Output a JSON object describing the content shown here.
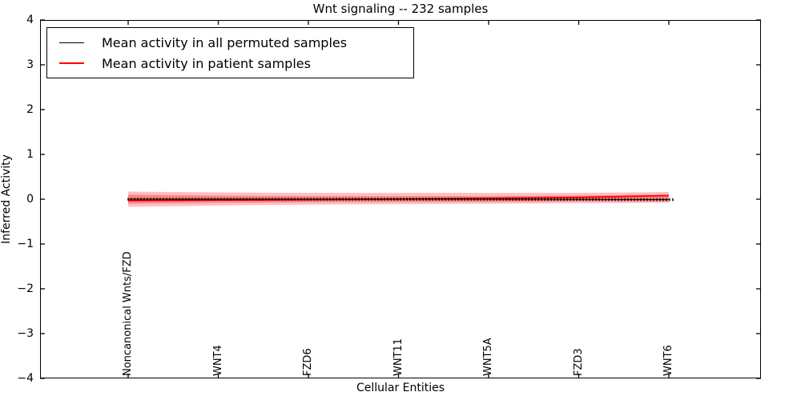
{
  "title": "Wnt signaling -- 232 samples",
  "chart_data": {
    "type": "line",
    "title": "Wnt signaling -- 232 samples",
    "xlabel": "Cellular Entities",
    "ylabel": "Inferred Activity",
    "ylim": [
      -4,
      4
    ],
    "ytick_values": [
      4,
      3,
      2,
      1,
      0,
      -1,
      -2,
      -3,
      -4
    ],
    "ytick_labels": [
      "4",
      "3",
      "2",
      "1",
      "0",
      "−1",
      "−2",
      "−3",
      "−4"
    ],
    "categories": [
      "Noncanonical Wnts/FZD",
      "WNT4",
      "FZD6",
      "WNT11",
      "WNT5A",
      "FZD3",
      "WNT6"
    ],
    "series": [
      {
        "name": "Mean activity in all permuted samples",
        "color": "#000000",
        "style": "line-with-tick-markers",
        "values": [
          0.0,
          0.0,
          0.0,
          0.0,
          0.0,
          -0.005,
          -0.01
        ]
      },
      {
        "name": "Mean activity in patient samples",
        "color": "#ff0000",
        "style": "solid",
        "values": [
          -0.03,
          -0.02,
          -0.01,
          0.005,
          0.02,
          0.04,
          0.08
        ]
      }
    ],
    "band": {
      "color": "#ff0000",
      "outer_opacity": 0.25,
      "inner_opacity": 0.3,
      "outer_upper": [
        0.17,
        0.15,
        0.14,
        0.14,
        0.14,
        0.14,
        0.16
      ],
      "outer_lower": [
        -0.17,
        -0.14,
        -0.12,
        -0.11,
        -0.1,
        -0.09,
        -0.08
      ],
      "inner_upper": [
        0.1,
        0.08,
        0.07,
        0.07,
        0.07,
        0.08,
        0.1
      ],
      "inner_lower": [
        -0.1,
        -0.08,
        -0.07,
        -0.06,
        -0.06,
        -0.05,
        -0.05
      ]
    },
    "legend_position": "upper left",
    "grid": false
  }
}
